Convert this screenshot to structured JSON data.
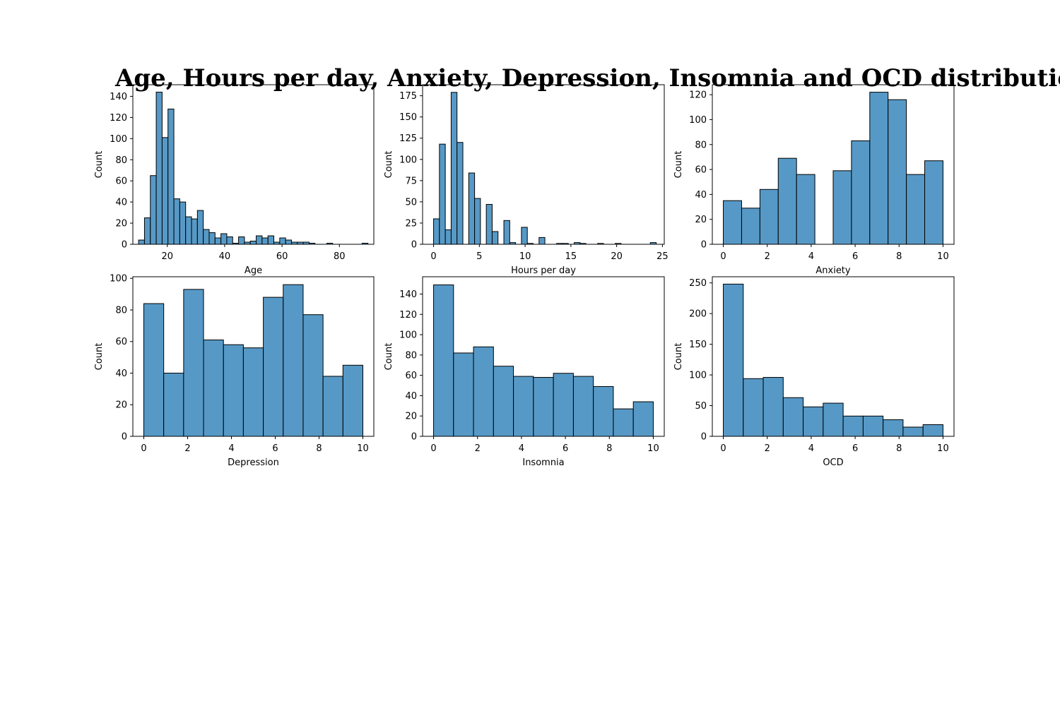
{
  "figure": {
    "title": "Age, Hours per day, Anxiety, Depression, Insomnia and OCD distribution",
    "bar_color": "#5799c6",
    "edge_color": "#000000"
  },
  "chart_data": [
    {
      "type": "bar",
      "xlabel": "Age",
      "ylabel": "Count",
      "xlim": [
        8,
        92
      ],
      "ylim": [
        0,
        151
      ],
      "xticks": [
        20,
        40,
        60,
        80
      ],
      "yticks": [
        0,
        20,
        40,
        60,
        80,
        100,
        120,
        140
      ],
      "bin_edges": [
        10,
        12.05,
        14.1,
        16.15,
        18.2,
        20.25,
        22.3,
        24.35,
        26.4,
        28.45,
        30.5,
        32.55,
        34.6,
        36.65,
        38.7,
        40.75,
        42.8,
        44.85,
        46.9,
        48.95,
        51,
        53.05,
        55.1,
        57.15,
        59.2,
        61.25,
        63.3,
        65.35,
        67.4,
        69.45,
        71.5,
        73.55,
        75.6,
        77.65,
        79.7,
        81.75,
        83.8,
        85.85,
        87.9,
        89.95
      ],
      "values": [
        4,
        25,
        65,
        144,
        101,
        128,
        43,
        40,
        26,
        24,
        32,
        14,
        11,
        6,
        10,
        7,
        1,
        7,
        2,
        3,
        8,
        6,
        8,
        2,
        6,
        4,
        2,
        2,
        2,
        1,
        0,
        0,
        1,
        0,
        0,
        0,
        0,
        0,
        1
      ]
    },
    {
      "type": "bar",
      "xlabel": "Hours per day",
      "ylabel": "Count",
      "xlim": [
        -1.2,
        25.2
      ],
      "ylim": [
        0,
        188
      ],
      "xticks": [
        0,
        5,
        10,
        15,
        20,
        25
      ],
      "yticks": [
        0,
        25,
        50,
        75,
        100,
        125,
        150,
        175
      ],
      "bin_edges": [
        0,
        0.64,
        1.28,
        1.92,
        2.56,
        3.2,
        3.84,
        4.48,
        5.12,
        5.76,
        6.4,
        7.04,
        7.68,
        8.32,
        8.96,
        9.6,
        10.24,
        10.88,
        11.52,
        12.16,
        12.8,
        13.44,
        14.08,
        14.72,
        15.36,
        16,
        16.64,
        17.28,
        17.92,
        18.56,
        19.2,
        19.84,
        20.48,
        21.12,
        21.76,
        22.4,
        23.04,
        23.68,
        24.32
      ],
      "values": [
        30,
        118,
        17,
        179,
        120,
        0,
        84,
        54,
        0,
        47,
        15,
        0,
        28,
        2,
        0,
        20,
        1,
        0,
        8,
        0,
        0,
        1,
        1,
        0,
        2,
        1,
        0,
        0,
        1,
        0,
        0,
        1,
        0,
        0,
        0,
        0,
        0,
        2
      ]
    },
    {
      "type": "bar",
      "xlabel": "Anxiety",
      "ylabel": "Count",
      "xlim": [
        -0.5,
        10.5
      ],
      "ylim": [
        0,
        128
      ],
      "xticks": [
        0,
        2,
        4,
        6,
        8,
        10
      ],
      "yticks": [
        0,
        20,
        40,
        60,
        80,
        100,
        120
      ],
      "bin_edges": [
        0,
        0.833,
        1.667,
        2.5,
        3.333,
        4.167,
        5,
        5.833,
        6.667,
        7.5,
        8.333,
        9.167,
        10
      ],
      "values": [
        35,
        29,
        44,
        69,
        56,
        0,
        59,
        83,
        122,
        116,
        56,
        67
      ]
    },
    {
      "type": "bar",
      "xlabel": "Depression",
      "ylabel": "Count",
      "xlim": [
        -0.5,
        10.5
      ],
      "ylim": [
        0,
        101
      ],
      "xticks": [
        0,
        2,
        4,
        6,
        8,
        10
      ],
      "yticks": [
        0,
        20,
        40,
        60,
        80,
        100
      ],
      "bin_edges": [
        0,
        0.909,
        1.818,
        2.727,
        3.636,
        4.545,
        5.455,
        6.364,
        7.273,
        8.182,
        9.091,
        10
      ],
      "values": [
        84,
        40,
        93,
        61,
        58,
        56,
        88,
        96,
        77,
        38,
        45
      ]
    },
    {
      "type": "bar",
      "xlabel": "Insomnia",
      "ylabel": "Count",
      "xlim": [
        -0.5,
        10.5
      ],
      "ylim": [
        0,
        157
      ],
      "xticks": [
        0,
        2,
        4,
        6,
        8,
        10
      ],
      "yticks": [
        0,
        20,
        40,
        60,
        80,
        100,
        120,
        140
      ],
      "bin_edges": [
        0,
        0.909,
        1.818,
        2.727,
        3.636,
        4.545,
        5.455,
        6.364,
        7.273,
        8.182,
        9.091,
        10
      ],
      "values": [
        149,
        82,
        88,
        69,
        59,
        58,
        62,
        59,
        49,
        27,
        34
      ]
    },
    {
      "type": "bar",
      "xlabel": "OCD",
      "ylabel": "Count",
      "xlim": [
        -0.5,
        10.5
      ],
      "ylim": [
        0,
        260
      ],
      "xticks": [
        0,
        2,
        4,
        6,
        8,
        10
      ],
      "yticks": [
        0,
        50,
        100,
        150,
        200,
        250
      ],
      "bin_edges": [
        0,
        0.909,
        1.818,
        2.727,
        3.636,
        4.545,
        5.455,
        6.364,
        7.273,
        8.182,
        9.091,
        10
      ],
      "values": [
        248,
        94,
        96,
        63,
        48,
        54,
        33,
        33,
        27,
        15,
        19
      ]
    }
  ]
}
